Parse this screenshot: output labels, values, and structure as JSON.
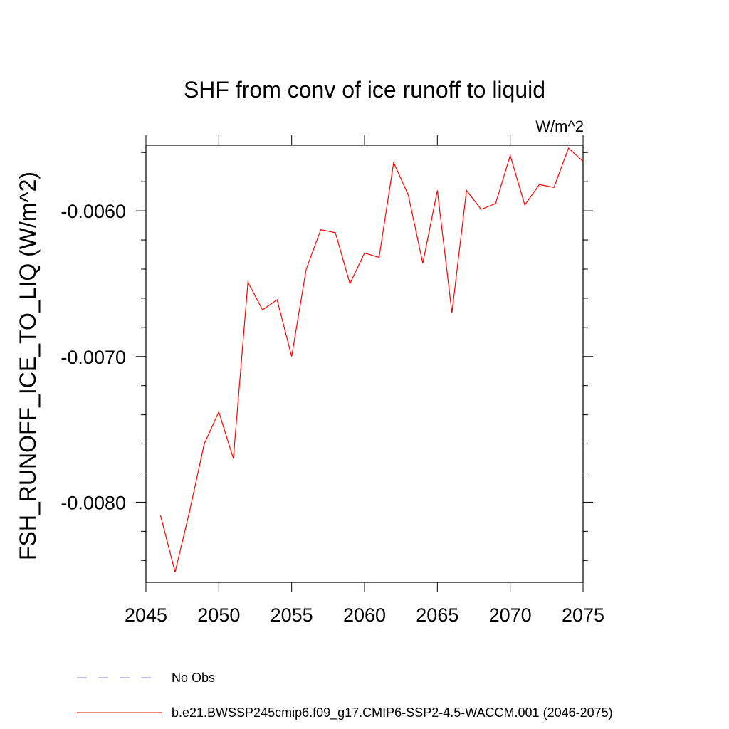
{
  "chart_data": {
    "type": "line",
    "title": "SHF from conv of ice runoff to liquid",
    "units_label": "W/m^2",
    "ylabel": "FSH_RUNOFF_ICE_TO_LIQ  (W/m^2)",
    "xlabel": "",
    "xlim": [
      2045,
      2075
    ],
    "ylim": [
      -0.00855,
      -0.00555
    ],
    "x_ticks": [
      2045,
      2050,
      2055,
      2060,
      2065,
      2070,
      2075
    ],
    "x_tick_labels": [
      "2045",
      "2050",
      "2055",
      "2060",
      "2065",
      "2070",
      "2075"
    ],
    "y_ticks": [
      -0.008,
      -0.007,
      -0.006
    ],
    "y_tick_labels": [
      "-0.0080",
      "-0.0070",
      "-0.0060"
    ],
    "series": [
      {
        "name": "b.e21.BWSSP245cmip6.f09_g17.CMIP6-SSP2-4.5-WACCM.001 (2046-2075)",
        "color": "#ff0000",
        "style": "solid",
        "x": [
          2046,
          2047,
          2048,
          2049,
          2050,
          2051,
          2052,
          2053,
          2054,
          2055,
          2056,
          2057,
          2058,
          2059,
          2060,
          2061,
          2062,
          2063,
          2064,
          2065,
          2066,
          2067,
          2068,
          2069,
          2070,
          2071,
          2072,
          2073,
          2074,
          2075
        ],
        "values": [
          -0.00809,
          -0.00848,
          -0.00806,
          -0.0076,
          -0.00738,
          -0.0077,
          -0.00649,
          -0.00668,
          -0.00661,
          -0.007,
          -0.0064,
          -0.00613,
          -0.00615,
          -0.0065,
          -0.00629,
          -0.00632,
          -0.00567,
          -0.00589,
          -0.00636,
          -0.00586,
          -0.0067,
          -0.00586,
          -0.00599,
          -0.00595,
          -0.00562,
          -0.00596,
          -0.00582,
          -0.00584,
          -0.00557,
          -0.00566
        ]
      }
    ],
    "legend": [
      {
        "label": "No Obs",
        "color": "#7f7fcf",
        "style": "dashed"
      },
      {
        "label": "b.e21.BWSSP245cmip6.f09_g17.CMIP6-SSP2-4.5-WACCM.001 (2046-2075)",
        "color": "#ff0000",
        "style": "solid"
      }
    ],
    "legend_position": "bottom-left"
  }
}
